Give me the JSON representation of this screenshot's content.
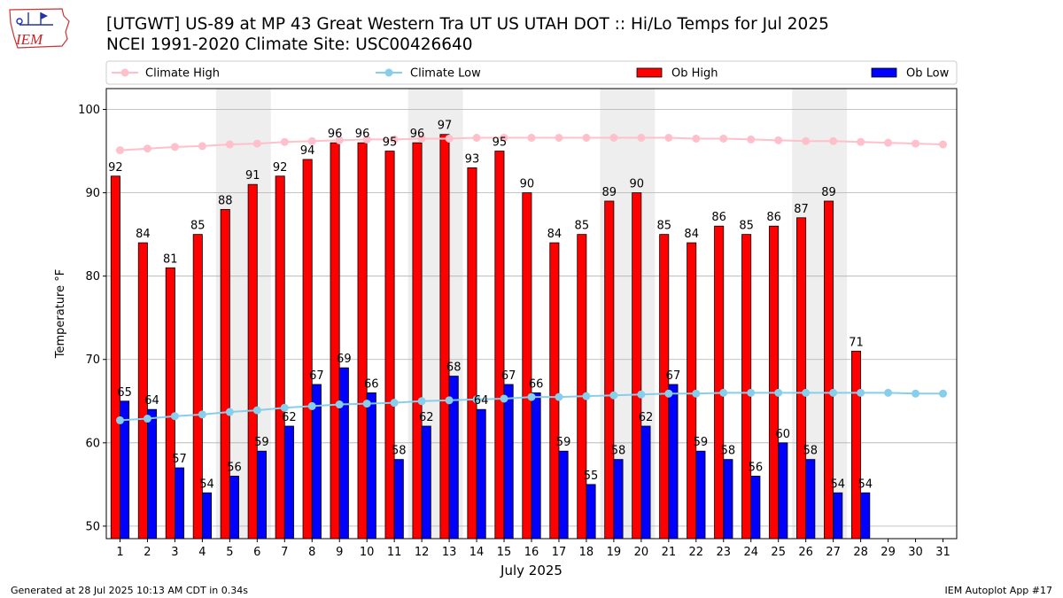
{
  "header": {
    "title_line1": "[UTGWT] US-89 at MP 43 Great Western Tra UT US UTAH DOT :: Hi/Lo Temps for Jul 2025",
    "title_line2": "NCEI 1991-2020 Climate Site: USC00426640",
    "logo_text": "IEM"
  },
  "footer": {
    "left": "Generated at 28 Jul 2025 10:13 AM CDT in 0.34s",
    "right": "IEM Autoplot App #17"
  },
  "colors": {
    "ob_high": "#ff0000",
    "ob_low": "#0000ff",
    "climate_high": "#ffc0cb",
    "climate_low": "#87ceeb",
    "weekend_shade": "#eeeeee",
    "grid": "#b0b0b0"
  },
  "chart_data": {
    "type": "bar",
    "xlabel": "July 2025",
    "ylabel": "Temperature °F",
    "ylim": [
      48.5,
      102.5
    ],
    "yticks": [
      50,
      60,
      70,
      80,
      90,
      100
    ],
    "grid": true,
    "legend_position": "top",
    "categories": [
      "1",
      "2",
      "3",
      "4",
      "5",
      "6",
      "7",
      "8",
      "9",
      "10",
      "11",
      "12",
      "13",
      "14",
      "15",
      "16",
      "17",
      "18",
      "19",
      "20",
      "21",
      "22",
      "23",
      "24",
      "25",
      "26",
      "27",
      "28",
      "29",
      "30",
      "31"
    ],
    "shaded_weekend_days": [
      [
        5,
        6
      ],
      [
        12,
        13
      ],
      [
        19,
        20
      ],
      [
        26,
        27
      ]
    ],
    "series": [
      {
        "name": "Climate High",
        "kind": "line",
        "values": [
          95.1,
          95.3,
          95.5,
          95.6,
          95.8,
          95.9,
          96.1,
          96.2,
          96.3,
          96.4,
          96.4,
          96.5,
          96.5,
          96.6,
          96.6,
          96.6,
          96.6,
          96.6,
          96.6,
          96.6,
          96.6,
          96.5,
          96.5,
          96.4,
          96.3,
          96.2,
          96.2,
          96.1,
          96.0,
          95.9,
          95.8
        ]
      },
      {
        "name": "Climate Low",
        "kind": "line",
        "values": [
          62.7,
          62.9,
          63.2,
          63.4,
          63.7,
          63.9,
          64.2,
          64.4,
          64.6,
          64.7,
          64.8,
          65.0,
          65.1,
          65.2,
          65.3,
          65.5,
          65.5,
          65.6,
          65.7,
          65.8,
          65.9,
          65.9,
          66.0,
          66.0,
          66.0,
          66.0,
          66.0,
          66.0,
          66.0,
          65.9,
          65.9
        ]
      },
      {
        "name": "Ob High",
        "kind": "bar",
        "values": [
          92,
          84,
          81,
          85,
          88,
          91,
          92,
          94,
          96,
          96,
          95,
          96,
          97,
          93,
          95,
          90,
          84,
          85,
          89,
          90,
          85,
          84,
          86,
          85,
          86,
          87,
          89,
          71,
          null,
          null,
          null
        ],
        "labels": [
          92,
          84,
          81,
          85,
          88,
          91,
          92,
          94,
          96,
          96,
          95,
          96,
          97,
          93,
          95,
          90,
          84,
          85,
          89,
          90,
          85,
          84,
          86,
          85,
          86,
          87,
          89,
          71,
          null,
          null,
          null
        ]
      },
      {
        "name": "Ob Low",
        "kind": "bar",
        "values": [
          65,
          64,
          57,
          54,
          56,
          59,
          62,
          67,
          69,
          66,
          58,
          62,
          68,
          64,
          67,
          66,
          59,
          55,
          58,
          62,
          67,
          59,
          58,
          56,
          60,
          58,
          54,
          54,
          null,
          null,
          null
        ],
        "labels": [
          65,
          64,
          57,
          54,
          56,
          59,
          62,
          67,
          69,
          66,
          58,
          62,
          68,
          64,
          67,
          66,
          59,
          55,
          58,
          62,
          67,
          59,
          58,
          56,
          60,
          58,
          54,
          54,
          null,
          null,
          null
        ]
      }
    ]
  }
}
